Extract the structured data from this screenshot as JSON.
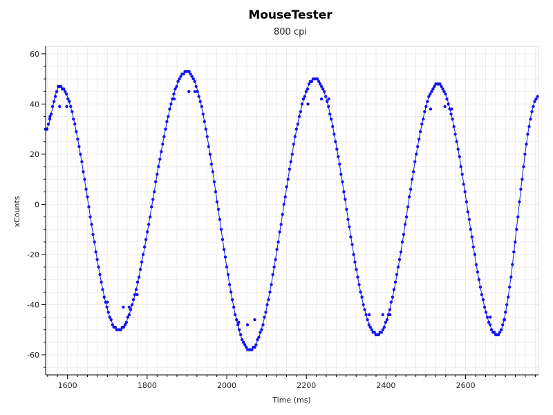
{
  "chart_data": {
    "type": "scatter",
    "title": "MouseTester",
    "subtitle": "800 cpi",
    "xlabel": "Time (ms)",
    "ylabel": "xCounts",
    "xlim": [
      1545,
      2783
    ],
    "ylim": [
      -68,
      63
    ],
    "x_ticks": [
      1600,
      1800,
      2000,
      2200,
      2400,
      2600
    ],
    "y_ticks": [
      -60,
      -40,
      -20,
      0,
      20,
      40,
      60
    ],
    "grid": true,
    "legend": "none",
    "colors": {
      "points": "#1515f0",
      "line": "#1515f0",
      "grid": "#ebebeb",
      "axis": "#000000"
    },
    "extrema": [
      {
        "t": 1545,
        "v": 30
      },
      {
        "t": 1580,
        "v": 47
      },
      {
        "t": 1728,
        "v": -50
      },
      {
        "t": 1900,
        "v": 53
      },
      {
        "t": 2058,
        "v": -58
      },
      {
        "t": 2222,
        "v": 50
      },
      {
        "t": 2378,
        "v": -52
      },
      {
        "t": 2530,
        "v": 48
      },
      {
        "t": 2680,
        "v": -52
      },
      {
        "t": 2783,
        "v": 43
      }
    ],
    "outliers": [
      {
        "x": 1556,
        "y": 35
      },
      {
        "x": 1580,
        "y": 39
      },
      {
        "x": 1598,
        "y": 39
      },
      {
        "x": 1700,
        "y": -39
      },
      {
        "x": 1740,
        "y": -41
      },
      {
        "x": 1755,
        "y": -41
      },
      {
        "x": 1775,
        "y": -36
      },
      {
        "x": 1868,
        "y": 42
      },
      {
        "x": 1905,
        "y": 45
      },
      {
        "x": 1920,
        "y": 45
      },
      {
        "x": 2030,
        "y": -47
      },
      {
        "x": 2052,
        "y": -48
      },
      {
        "x": 2070,
        "y": -46
      },
      {
        "x": 2204,
        "y": 40
      },
      {
        "x": 2238,
        "y": 42
      },
      {
        "x": 2256,
        "y": 42
      },
      {
        "x": 2358,
        "y": -44
      },
      {
        "x": 2392,
        "y": -44
      },
      {
        "x": 2410,
        "y": -44
      },
      {
        "x": 2512,
        "y": 38
      },
      {
        "x": 2548,
        "y": 39
      },
      {
        "x": 2565,
        "y": 38
      },
      {
        "x": 2662,
        "y": -45
      },
      {
        "x": 2698,
        "y": -46
      }
    ],
    "sample_step_ms": 3.5
  }
}
